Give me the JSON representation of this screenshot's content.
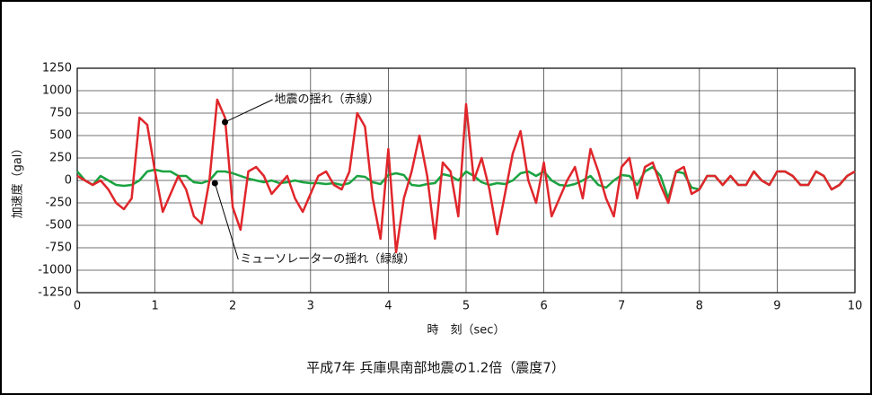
{
  "chart_data": {
    "type": "line",
    "caption": "平成7年 兵庫県南部地震の1.2倍（震度7）",
    "y_label": "加速度（gal）",
    "x_label": "時　刻（sec）",
    "xlim": [
      0,
      10
    ],
    "ylim": [
      -1250,
      1250
    ],
    "xticks": [
      0,
      1,
      2,
      3,
      4,
      5,
      6,
      7,
      8,
      9,
      10
    ],
    "yticks": [
      -1250,
      -1000,
      -750,
      -500,
      -250,
      0,
      250,
      500,
      750,
      1000,
      1250
    ],
    "grid": true,
    "x": [
      0,
      0.1,
      0.2,
      0.3,
      0.4,
      0.5,
      0.6,
      0.7,
      0.8,
      0.9,
      1,
      1.1,
      1.2,
      1.3,
      1.4,
      1.5,
      1.6,
      1.7,
      1.8,
      1.9,
      2,
      2.1,
      2.2,
      2.3,
      2.4,
      2.5,
      2.6,
      2.7,
      2.8,
      2.9,
      3,
      3.1,
      3.2,
      3.3,
      3.4,
      3.5,
      3.6,
      3.7,
      3.8,
      3.9,
      4,
      4.1,
      4.2,
      4.3,
      4.4,
      4.5,
      4.6,
      4.7,
      4.8,
      4.9,
      5,
      5.1,
      5.2,
      5.3,
      5.4,
      5.5,
      5.6,
      5.7,
      5.8,
      5.9,
      6,
      6.1,
      6.2,
      6.3,
      6.4,
      6.5,
      6.6,
      6.7,
      6.8,
      6.9,
      7,
      7.1,
      7.2,
      7.3,
      7.4,
      7.5,
      7.6,
      7.7,
      7.8,
      7.9,
      8,
      8.1,
      8.2,
      8.3,
      8.4,
      8.5,
      8.6,
      8.7,
      8.8,
      8.9,
      9,
      9.1,
      9.2,
      9.3,
      9.4,
      9.5,
      9.6,
      9.7,
      9.8,
      9.9,
      10
    ],
    "series": [
      {
        "name": "地震の揺れ（赤線）",
        "color": "#e0262b",
        "values": [
          50,
          0,
          -50,
          0,
          -100,
          -250,
          -320,
          -200,
          700,
          620,
          100,
          -350,
          -150,
          50,
          -100,
          -400,
          -480,
          0,
          900,
          700,
          -300,
          -550,
          100,
          150,
          50,
          -150,
          -50,
          50,
          -200,
          -350,
          -150,
          50,
          100,
          -50,
          -100,
          100,
          750,
          600,
          -200,
          -650,
          350,
          -800,
          -200,
          100,
          500,
          50,
          -650,
          200,
          100,
          -400,
          850,
          0,
          250,
          -100,
          -600,
          -150,
          300,
          550,
          0,
          -250,
          200,
          -400,
          -200,
          0,
          150,
          -200,
          350,
          100,
          -200,
          -400,
          150,
          250,
          -200,
          150,
          200,
          -50,
          -250,
          100,
          150,
          -150,
          -100,
          50,
          50,
          -50,
          50,
          -50,
          -50,
          100,
          0,
          -50,
          100,
          100,
          50,
          -50,
          -50,
          100,
          50,
          -100,
          -50,
          50,
          100
        ]
      },
      {
        "name": "ミューソレーターの揺れ（緑線）",
        "color": "#1aa340",
        "values": [
          100,
          0,
          -50,
          50,
          0,
          -50,
          -60,
          -50,
          0,
          100,
          120,
          100,
          100,
          50,
          50,
          -20,
          -30,
          0,
          100,
          100,
          80,
          50,
          20,
          0,
          -20,
          0,
          -30,
          -20,
          0,
          -20,
          -30,
          -30,
          -40,
          -30,
          -50,
          -30,
          50,
          40,
          -20,
          -40,
          60,
          80,
          60,
          -50,
          -60,
          -40,
          -30,
          70,
          50,
          0,
          100,
          50,
          -20,
          -50,
          -30,
          -40,
          0,
          80,
          100,
          50,
          100,
          0,
          -50,
          -60,
          -40,
          0,
          50,
          -50,
          -80,
          0,
          60,
          50,
          -50,
          100,
          150,
          50,
          -200,
          100,
          80,
          -80,
          -100,
          50,
          50,
          -50,
          50,
          -50,
          -50,
          100,
          0,
          -50,
          100,
          100,
          50,
          -50,
          -50,
          100,
          50,
          -100,
          -50,
          50,
          100
        ]
      }
    ],
    "annotations": [
      {
        "series": 0,
        "x": 1.9,
        "y": 650
      },
      {
        "series": 1,
        "x": 1.77,
        "y": -30
      }
    ]
  }
}
